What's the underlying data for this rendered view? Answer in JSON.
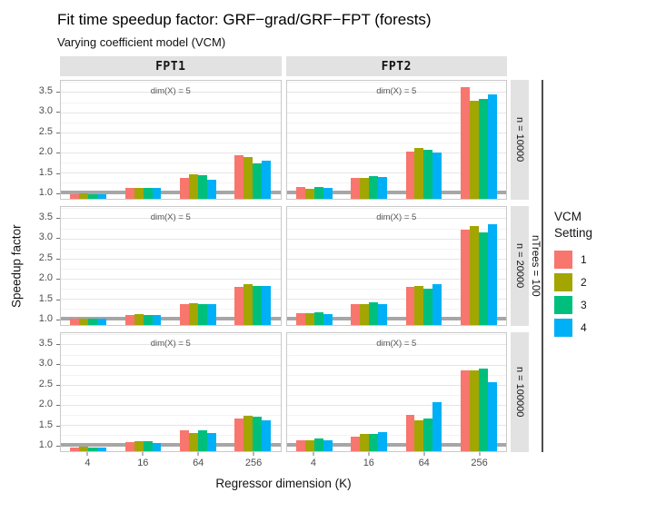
{
  "chart_data": {
    "type": "bar",
    "title": "Fit time speedup factor: GRF−grad/GRF−FPT (forests)",
    "subtitle": "Varying coefficient model (VCM)",
    "xlabel": "Regressor dimension (K)",
    "ylabel": "Speedup factor",
    "x_tick_labels": [
      "4",
      "16",
      "64",
      "256"
    ],
    "y_ticks": [
      1.0,
      1.5,
      2.0,
      2.5,
      3.0,
      3.5
    ],
    "y_tick_labels": [
      "1.0",
      "1.5",
      "2.0",
      "2.5",
      "3.0",
      "3.5"
    ],
    "ylim": [
      0.85,
      3.78
    ],
    "reference_line_y": 1.0,
    "grid": true,
    "legend_position": "right",
    "legend_title_lines": [
      "VCM",
      "Setting"
    ],
    "series": [
      {
        "name": "1",
        "color": "#F8766D"
      },
      {
        "name": "2",
        "color": "#A3A500"
      },
      {
        "name": "3",
        "color": "#00BF7D"
      },
      {
        "name": "4",
        "color": "#00B0F6"
      }
    ],
    "facet_cols": [
      "FPT1",
      "FPT2"
    ],
    "facet_rows": [
      "n = 10000",
      "n = 20000",
      "n = 100000"
    ],
    "outer_facet_row": "nTrees = 100",
    "panel_annotation": "dim(X) = 5",
    "panels": [
      {
        "col": "FPT1",
        "row": "n = 10000",
        "values": [
          [
            0.97,
            0.98,
            0.97,
            0.97
          ],
          [
            1.12,
            1.13,
            1.13,
            1.12
          ],
          [
            1.38,
            1.47,
            1.43,
            1.32
          ],
          [
            1.93,
            1.88,
            1.72,
            1.8
          ]
        ]
      },
      {
        "col": "FPT2",
        "row": "n = 10000",
        "values": [
          [
            1.14,
            1.1,
            1.15,
            1.13
          ],
          [
            1.37,
            1.36,
            1.42,
            1.4
          ],
          [
            2.02,
            2.12,
            2.06,
            2.0
          ],
          [
            3.62,
            3.28,
            3.32,
            3.45
          ]
        ]
      },
      {
        "col": "FPT1",
        "row": "n = 20000",
        "values": [
          [
            1.0,
            1.01,
            1.0,
            1.0
          ],
          [
            1.1,
            1.12,
            1.1,
            1.09
          ],
          [
            1.36,
            1.4,
            1.38,
            1.37
          ],
          [
            1.8,
            1.86,
            1.82,
            1.81
          ]
        ]
      },
      {
        "col": "FPT2",
        "row": "n = 20000",
        "values": [
          [
            1.15,
            1.14,
            1.16,
            1.13
          ],
          [
            1.37,
            1.36,
            1.41,
            1.37
          ],
          [
            1.8,
            1.81,
            1.76,
            1.86
          ],
          [
            3.22,
            3.3,
            3.15,
            3.36
          ]
        ]
      },
      {
        "col": "FPT1",
        "row": "n = 100000",
        "values": [
          [
            0.95,
            0.96,
            0.95,
            0.95
          ],
          [
            1.07,
            1.1,
            1.1,
            1.06
          ],
          [
            1.37,
            1.3,
            1.36,
            1.3
          ],
          [
            1.67,
            1.72,
            1.71,
            1.62
          ]
        ]
      },
      {
        "col": "FPT2",
        "row": "n = 100000",
        "values": [
          [
            1.12,
            1.12,
            1.16,
            1.12
          ],
          [
            1.22,
            1.27,
            1.27,
            1.33
          ],
          [
            1.76,
            1.62,
            1.66,
            2.06
          ],
          [
            2.86,
            2.86,
            2.91,
            2.56
          ]
        ]
      }
    ]
  }
}
